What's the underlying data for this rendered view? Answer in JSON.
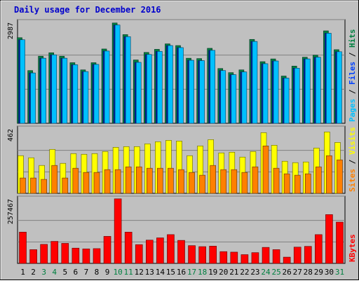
{
  "title": "Daily usage for December 2016",
  "colors": {
    "background": "#C0C0C0",
    "title": "#0000CC",
    "hits": "#008040",
    "files": "#0040FF",
    "pages": "#00C0FF",
    "visits": "#FFFF00",
    "sites": "#FF8000",
    "kbytes": "#FF0000",
    "weekend_day": "#008040",
    "weekday": "#000000",
    "grid": "#808080"
  },
  "chart_data": [
    {
      "type": "bar",
      "ymax_label": "2987",
      "right_label": [
        "Pages",
        "Files",
        "Hits"
      ],
      "right_label_colors": [
        "#00C0FF",
        "#0040FF",
        "#008040"
      ],
      "categories": [
        "1",
        "2",
        "3",
        "4",
        "5",
        "6",
        "7",
        "8",
        "9",
        "10",
        "11",
        "12",
        "13",
        "14",
        "15",
        "16",
        "17",
        "18",
        "19",
        "20",
        "21",
        "22",
        "23",
        "24",
        "25",
        "26",
        "27",
        "28",
        "29",
        "30",
        "31"
      ],
      "ylim": [
        0,
        2987
      ],
      "series": [
        {
          "name": "Hits",
          "values": [
            2500,
            1540,
            1960,
            2060,
            1960,
            1770,
            1560,
            1770,
            2170,
            2930,
            2590,
            1850,
            2070,
            2160,
            2320,
            2270,
            1900,
            1890,
            2190,
            1600,
            1480,
            1560,
            2450,
            1800,
            1880,
            1380,
            1670,
            1930,
            1990,
            2700,
            2150
          ]
        },
        {
          "name": "Files",
          "values": [
            2440,
            1470,
            1900,
            2000,
            1900,
            1710,
            1510,
            1720,
            2110,
            2870,
            2530,
            1780,
            2010,
            2100,
            2270,
            2210,
            1840,
            1830,
            2130,
            1540,
            1420,
            1500,
            2390,
            1740,
            1820,
            1320,
            1610,
            1880,
            1930,
            2630,
            2090
          ]
        },
        {
          "name": "Pages",
          "values": [
            2440,
            1470,
            1900,
            2000,
            1900,
            1710,
            1510,
            1720,
            2110,
            2870,
            2530,
            1780,
            2010,
            2100,
            2270,
            2210,
            1840,
            1830,
            2130,
            1540,
            1420,
            1500,
            2390,
            1740,
            1820,
            1320,
            1610,
            1880,
            1930,
            2630,
            2090
          ]
        }
      ]
    },
    {
      "type": "bar",
      "ymax_label": "462",
      "right_label": [
        "Sites",
        "Visits"
      ],
      "right_label_colors": [
        "#FF8000",
        "#FFFF00"
      ],
      "categories": [
        "1",
        "2",
        "3",
        "4",
        "5",
        "6",
        "7",
        "8",
        "9",
        "10",
        "11",
        "12",
        "13",
        "14",
        "15",
        "16",
        "17",
        "18",
        "19",
        "20",
        "21",
        "22",
        "23",
        "24",
        "25",
        "26",
        "27",
        "28",
        "29",
        "30",
        "31"
      ],
      "ylim": [
        0,
        462
      ],
      "series": [
        {
          "name": "Visits",
          "values": [
            270,
            255,
            200,
            315,
            215,
            285,
            280,
            285,
            300,
            330,
            335,
            335,
            355,
            370,
            380,
            375,
            270,
            340,
            385,
            290,
            295,
            260,
            300,
            435,
            345,
            230,
            220,
            225,
            325,
            440,
            365
          ]
        },
        {
          "name": "Sites",
          "values": [
            110,
            110,
            100,
            200,
            110,
            180,
            150,
            150,
            170,
            170,
            190,
            190,
            180,
            180,
            180,
            170,
            150,
            130,
            200,
            170,
            170,
            150,
            190,
            340,
            180,
            140,
            130,
            140,
            190,
            270,
            240
          ]
        }
      ]
    },
    {
      "type": "bar",
      "ymax_label": "257467",
      "right_label": [
        "KBytes"
      ],
      "right_label_colors": [
        "#FF0000"
      ],
      "categories": [
        "1",
        "2",
        "3",
        "4",
        "5",
        "6",
        "7",
        "8",
        "9",
        "10",
        "11",
        "12",
        "13",
        "14",
        "15",
        "16",
        "17",
        "18",
        "19",
        "20",
        "21",
        "22",
        "23",
        "24",
        "25",
        "26",
        "27",
        "28",
        "29",
        "30",
        "31"
      ],
      "ylim": [
        0,
        257467
      ],
      "series": [
        {
          "name": "KBytes",
          "values": [
            125000,
            55000,
            76000,
            88000,
            80000,
            61000,
            58000,
            59000,
            108000,
            258000,
            125000,
            75000,
            93000,
            102000,
            115000,
            92000,
            71000,
            67000,
            69000,
            47000,
            45000,
            35000,
            43000,
            64000,
            55000,
            25000,
            65000,
            68000,
            115000,
            195000,
            165000
          ]
        }
      ]
    }
  ],
  "x_labels": [
    "1",
    "2",
    "3",
    "4",
    "5",
    "6",
    "7",
    "8",
    "9",
    "10",
    "11",
    "12",
    "13",
    "14",
    "15",
    "16",
    "17",
    "18",
    "19",
    "20",
    "21",
    "22",
    "23",
    "24",
    "25",
    "26",
    "27",
    "28",
    "29",
    "30",
    "31"
  ],
  "weekend_days": [
    3,
    4,
    10,
    11,
    17,
    18,
    24,
    25,
    31
  ]
}
